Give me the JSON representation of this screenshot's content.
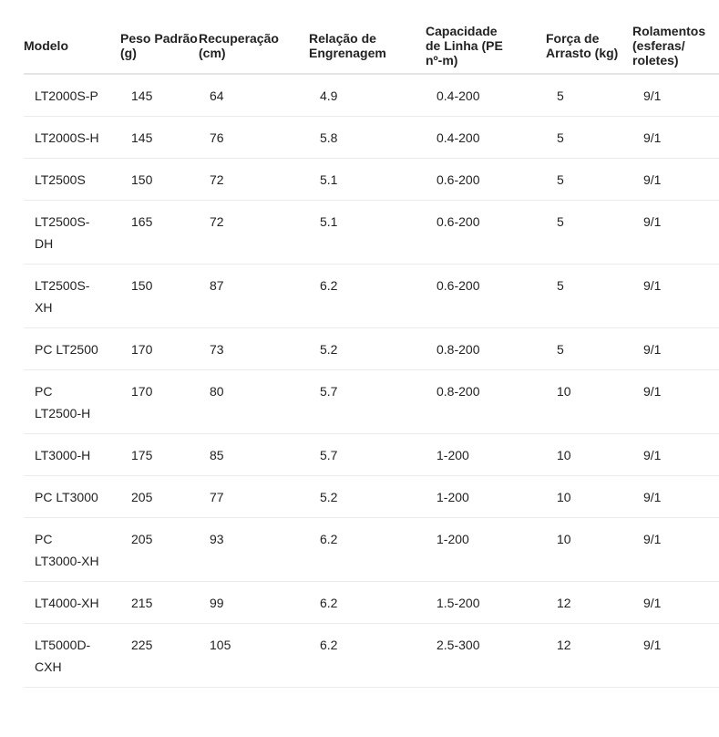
{
  "table": {
    "headers": [
      "Modelo",
      "Peso Padrão (g)",
      "Recuperação (cm)",
      "Relação de Engrenagem",
      "Capacidade de Linha (PE nº-m)",
      "Força de Arrasto (kg)",
      "Rolamentos (esferas/ roletes)"
    ],
    "rows": [
      [
        "LT2000S-P",
        "145",
        "64",
        "4.9",
        "0.4-200",
        "5",
        "9/1"
      ],
      [
        "LT2000S-H",
        "145",
        "76",
        "5.8",
        "0.4-200",
        "5",
        "9/1"
      ],
      [
        "LT2500S",
        "150",
        "72",
        "5.1",
        "0.6-200",
        "5",
        "9/1"
      ],
      [
        "LT2500S-DH",
        "165",
        "72",
        "5.1",
        "0.6-200",
        "5",
        "9/1"
      ],
      [
        "LT2500S-XH",
        "150",
        "87",
        "6.2",
        "0.6-200",
        "5",
        "9/1"
      ],
      [
        "PC LT2500",
        "170",
        "73",
        "5.2",
        "0.8-200",
        "5",
        "9/1"
      ],
      [
        "PC LT2500-H",
        "170",
        "80",
        "5.7",
        "0.8-200",
        "10",
        "9/1"
      ],
      [
        "LT3000-H",
        "175",
        "85",
        "5.7",
        "1-200",
        "10",
        "9/1"
      ],
      [
        "PC LT3000",
        "205",
        "77",
        "5.2",
        "1-200",
        "10",
        "9/1"
      ],
      [
        "PC LT3000-XH",
        "205",
        "93",
        "6.2",
        "1-200",
        "10",
        "9/1"
      ],
      [
        "LT4000-XH",
        "215",
        "99",
        "6.2",
        "1.5-200",
        "12",
        "9/1"
      ],
      [
        "LT5000D-CXH",
        "225",
        "105",
        "6.2",
        "2.5-300",
        "12",
        "9/1"
      ]
    ]
  }
}
